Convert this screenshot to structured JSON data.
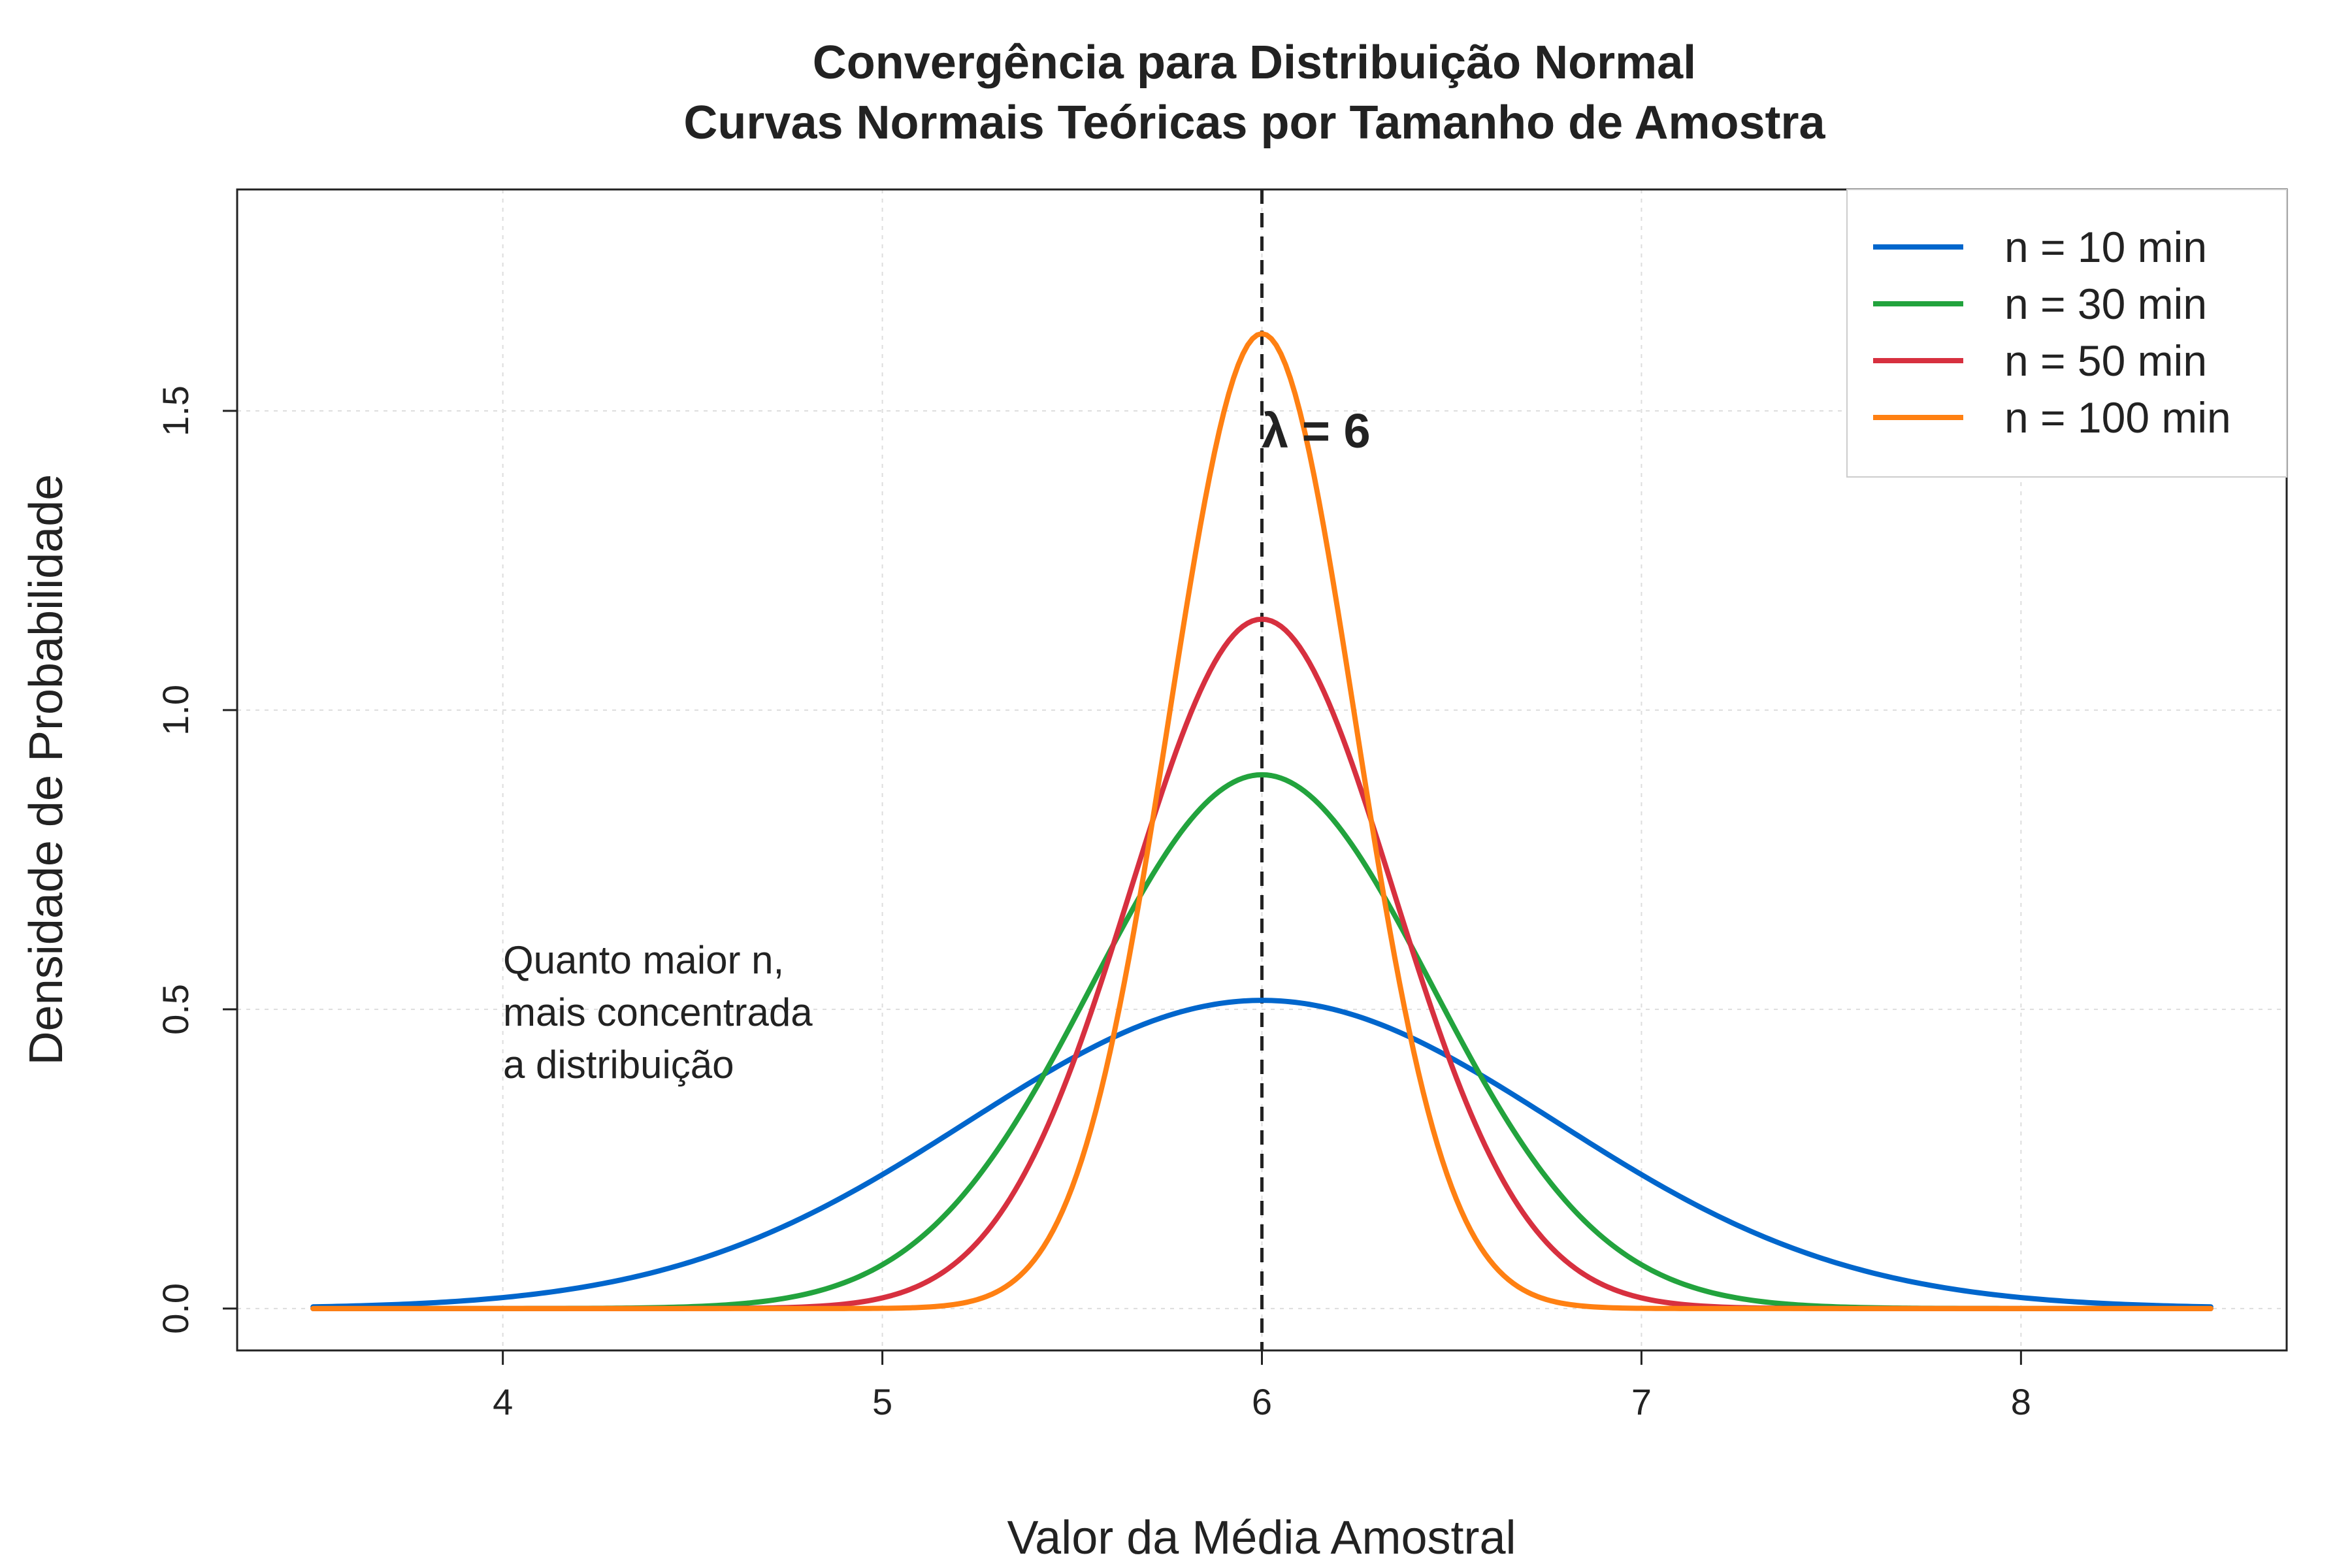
{
  "chart_data": {
    "type": "line",
    "title": "Convergência para Distribuição Normal",
    "subtitle": "Curvas Normais Teóricas por Tamanho de Amostra",
    "xlabel": "Valor da Média Amostral",
    "ylabel": "Densidade de Probabilidade",
    "xlim": [
      3.3,
      8.7
    ],
    "ylim": [
      -0.07,
      1.87
    ],
    "x_range": [
      3.5,
      8.5
    ],
    "xticks": [
      "4",
      "5",
      "6",
      "7",
      "8"
    ],
    "yticks": [
      "0.0",
      "0.5",
      "1.0",
      "1.5"
    ],
    "grid": true,
    "legend_position": "top-right",
    "series": [
      {
        "name": "n = 10 min",
        "mean": 6,
        "peak_density": 0.515,
        "color": "#0066cc"
      },
      {
        "name": "n = 30 min",
        "mean": 6,
        "peak_density": 0.892,
        "color": "#22a33d"
      },
      {
        "name": "n = 50 min",
        "mean": 6,
        "peak_density": 1.152,
        "color": "#d7303f"
      },
      {
        "name": "n = 100 min",
        "mean": 6,
        "peak_density": 1.629,
        "color": "#ff8012"
      }
    ],
    "reference_line": {
      "x": 6,
      "style": "dashed",
      "color": "#222222"
    },
    "annotations": {
      "lambda": "λ = 6",
      "note_lines": [
        "Quanto maior n,",
        "mais concentrada",
        "a distribuição"
      ]
    }
  }
}
